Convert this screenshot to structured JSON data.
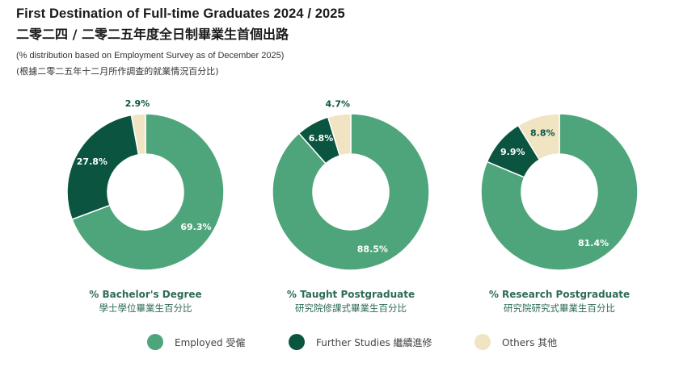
{
  "header": {
    "title_en": "First Destination of Full-time Graduates 2024 / 2025",
    "title_zh": "二零二四 / 二零二五年度全日制畢業生首個出路",
    "subtitle_en": "(% distribution based on Employment Survey as of December 2025)",
    "subtitle_zh": "(根據二零二五年十二月所作調查的就業情況百分比)"
  },
  "colors": {
    "employed": "#4fa57b",
    "further_studies": "#0b5540",
    "others": "#f1e4c3"
  },
  "chart_data": [
    {
      "type": "pie",
      "caption_en": "% Bachelor's Degree",
      "caption_zh": "學士學位畢業生百分比",
      "categories": [
        "Employed 受僱",
        "Further Studies 繼續進修",
        "Others 其他"
      ],
      "values": [
        69.3,
        27.8,
        2.9
      ],
      "labels": [
        "69.3%",
        "27.8%",
        "2.9%"
      ],
      "legend": "bottom"
    },
    {
      "type": "pie",
      "caption_en": "% Taught Postgraduate",
      "caption_zh": "研究院修課式畢業生百分比",
      "categories": [
        "Employed 受僱",
        "Further Studies 繼續進修",
        "Others 其他"
      ],
      "values": [
        88.5,
        6.8,
        4.7
      ],
      "labels": [
        "88.5%",
        "6.8%",
        "4.7%"
      ],
      "legend": "bottom"
    },
    {
      "type": "pie",
      "caption_en": "% Research Postgraduate",
      "caption_zh": "研究院研究式畢業生百分比",
      "categories": [
        "Employed 受僱",
        "Further Studies 繼續進修",
        "Others 其他"
      ],
      "values": [
        81.4,
        9.9,
        8.8
      ],
      "labels": [
        "81.4%",
        "9.9%",
        "8.8%"
      ],
      "legend": "bottom"
    }
  ],
  "legend": {
    "items": [
      {
        "label": "Employed 受僱",
        "color": "#4fa57b"
      },
      {
        "label": "Further Studies 繼續進修",
        "color": "#0b5540"
      },
      {
        "label": "Others 其他",
        "color": "#f1e4c3"
      }
    ]
  }
}
